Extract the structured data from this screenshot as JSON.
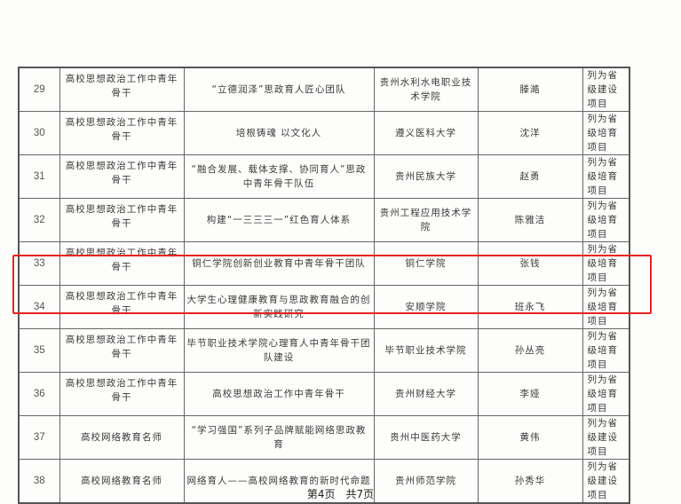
{
  "rows": [
    {
      "no": "29",
      "category": "高校思想政治工作中青年骨干",
      "project": "“立德润泽”思政育人匠心团队",
      "school": "贵州水利水电职业技术学院",
      "person": "滕澔",
      "status": "列为省级建设项目"
    },
    {
      "no": "30",
      "category": "高校思想政治工作中青年骨干",
      "project": "培根铸魂 以文化人",
      "school": "遵义医科大学",
      "person": "沈洋",
      "status": "列为省级培育项目"
    },
    {
      "no": "31",
      "category": "高校思想政治工作中青年骨干",
      "project": "“融合发展、载体支撑、协同育人”思政中青年骨干队伍",
      "school": "贵州民族大学",
      "person": "赵勇",
      "status": "列为省级培育项目"
    },
    {
      "no": "32",
      "category": "高校思想政治工作中青年骨干",
      "project": "构建“一三三三一”红色育人体系",
      "school": "贵州工程应用技术学院",
      "person": "陈雅洁",
      "status": "列为省级培育项目"
    },
    {
      "no": "33",
      "category": "高校思想政治工作中青年骨干",
      "project": "铜仁学院创新创业教育中青年骨干团队",
      "school": "铜仁学院",
      "person": "张钱",
      "status": "列为省级培育项目"
    },
    {
      "no": "34",
      "category": "高校思想政治工作中青年骨干",
      "project": "大学生心理健康教育与思政教育融合的创新实践研究",
      "school": "安顺学院",
      "person": "班永飞",
      "status": "列为省级培育项目"
    },
    {
      "no": "35",
      "category": "高校思想政治工作中青年骨干",
      "project": "毕节职业技术学院心理育人中青年骨干团队建设",
      "school": "毕节职业技术学院",
      "person": "孙丛亮",
      "status": "列为省级培育项目"
    },
    {
      "no": "36",
      "category": "高校思想政治工作中青年骨干",
      "project": "高校思想政治工作中青年骨干",
      "school": "贵州财经大学",
      "person": "李娅",
      "status": "列为省级培育项目"
    },
    {
      "no": "37",
      "category": "高校网络教育名师",
      "project": "“学习强国”系列子品牌赋能网络思政教育",
      "school": "贵州中医药大学",
      "person": "黄伟",
      "status": "列为省级建设项目"
    },
    {
      "no": "38",
      "category": "高校网络教育名师",
      "project": "网络育人——高校网络教育的新时代命题",
      "school": "贵州师范学院",
      "person": "孙秀华",
      "status": "列为省级建设项目"
    }
  ],
  "footer": "第4页　共7页",
  "highlight_color": "#e8231f"
}
